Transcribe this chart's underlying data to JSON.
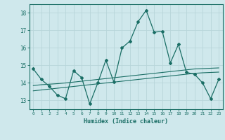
{
  "xlabel": "Humidex (Indice chaleur)",
  "bg_color": "#cfe8ec",
  "grid_color": "#b8d5da",
  "line_color": "#1a6e65",
  "x_data": [
    0,
    1,
    2,
    3,
    4,
    5,
    6,
    7,
    8,
    9,
    10,
    11,
    12,
    13,
    14,
    15,
    16,
    17,
    18,
    19,
    20,
    21,
    22,
    23
  ],
  "y_main": [
    14.8,
    14.2,
    13.8,
    13.3,
    13.1,
    14.7,
    14.3,
    12.8,
    14.0,
    15.3,
    14.05,
    16.0,
    16.4,
    17.5,
    18.15,
    16.9,
    16.95,
    15.15,
    16.2,
    14.6,
    14.5,
    14.0,
    13.1,
    14.2
  ],
  "y_smooth1": [
    13.85,
    13.9,
    13.93,
    13.96,
    14.0,
    14.05,
    14.1,
    14.15,
    14.2,
    14.25,
    14.3,
    14.35,
    14.4,
    14.45,
    14.5,
    14.55,
    14.6,
    14.65,
    14.7,
    14.75,
    14.8,
    14.82,
    14.84,
    14.86
  ],
  "y_smooth2": [
    13.55,
    13.6,
    13.65,
    13.7,
    13.75,
    13.8,
    13.85,
    13.9,
    13.95,
    14.0,
    14.05,
    14.1,
    14.15,
    14.2,
    14.25,
    14.3,
    14.35,
    14.4,
    14.45,
    14.5,
    14.55,
    14.58,
    14.6,
    14.62
  ],
  "ylim": [
    12.5,
    18.5
  ],
  "yticks": [
    13,
    14,
    15,
    16,
    17,
    18
  ],
  "xticks": [
    0,
    1,
    2,
    3,
    4,
    5,
    6,
    7,
    8,
    9,
    10,
    11,
    12,
    13,
    14,
    15,
    16,
    17,
    18,
    19,
    20,
    21,
    22,
    23
  ]
}
